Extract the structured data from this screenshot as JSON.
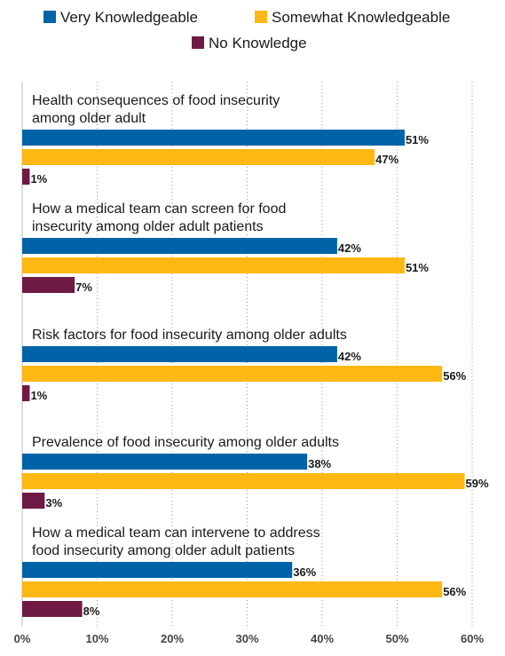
{
  "chart_data": {
    "type": "bar",
    "orientation": "horizontal",
    "categories": [
      [
        "Health consequences of food insecurity",
        "among older adult"
      ],
      [
        "How a medical team can screen for food",
        "insecurity among older adult patients"
      ],
      [
        "Risk factors for food insecurity among older adults"
      ],
      [
        "Prevalence of food insecurity among older adults"
      ],
      [
        "How a medical team can intervene to address",
        "food insecurity among older adult patients"
      ]
    ],
    "series": [
      {
        "name": "Very Knowledgeable",
        "color": "#0063a8",
        "values": [
          51,
          42,
          42,
          38,
          36
        ]
      },
      {
        "name": "Somewhat Knowledgeable",
        "color": "#fdb813",
        "values": [
          47,
          51,
          56,
          59,
          56
        ]
      },
      {
        "name": "No Knowledge",
        "color": "#6e1a44",
        "values": [
          1,
          7,
          1,
          3,
          8
        ]
      }
    ],
    "value_suffix": "%",
    "xlim": [
      0,
      60
    ],
    "xticks": [
      "0%",
      "10%",
      "20%",
      "30%",
      "40%",
      "50%",
      "60%"
    ],
    "grid": "vertical dotted",
    "legend_position": "top"
  }
}
